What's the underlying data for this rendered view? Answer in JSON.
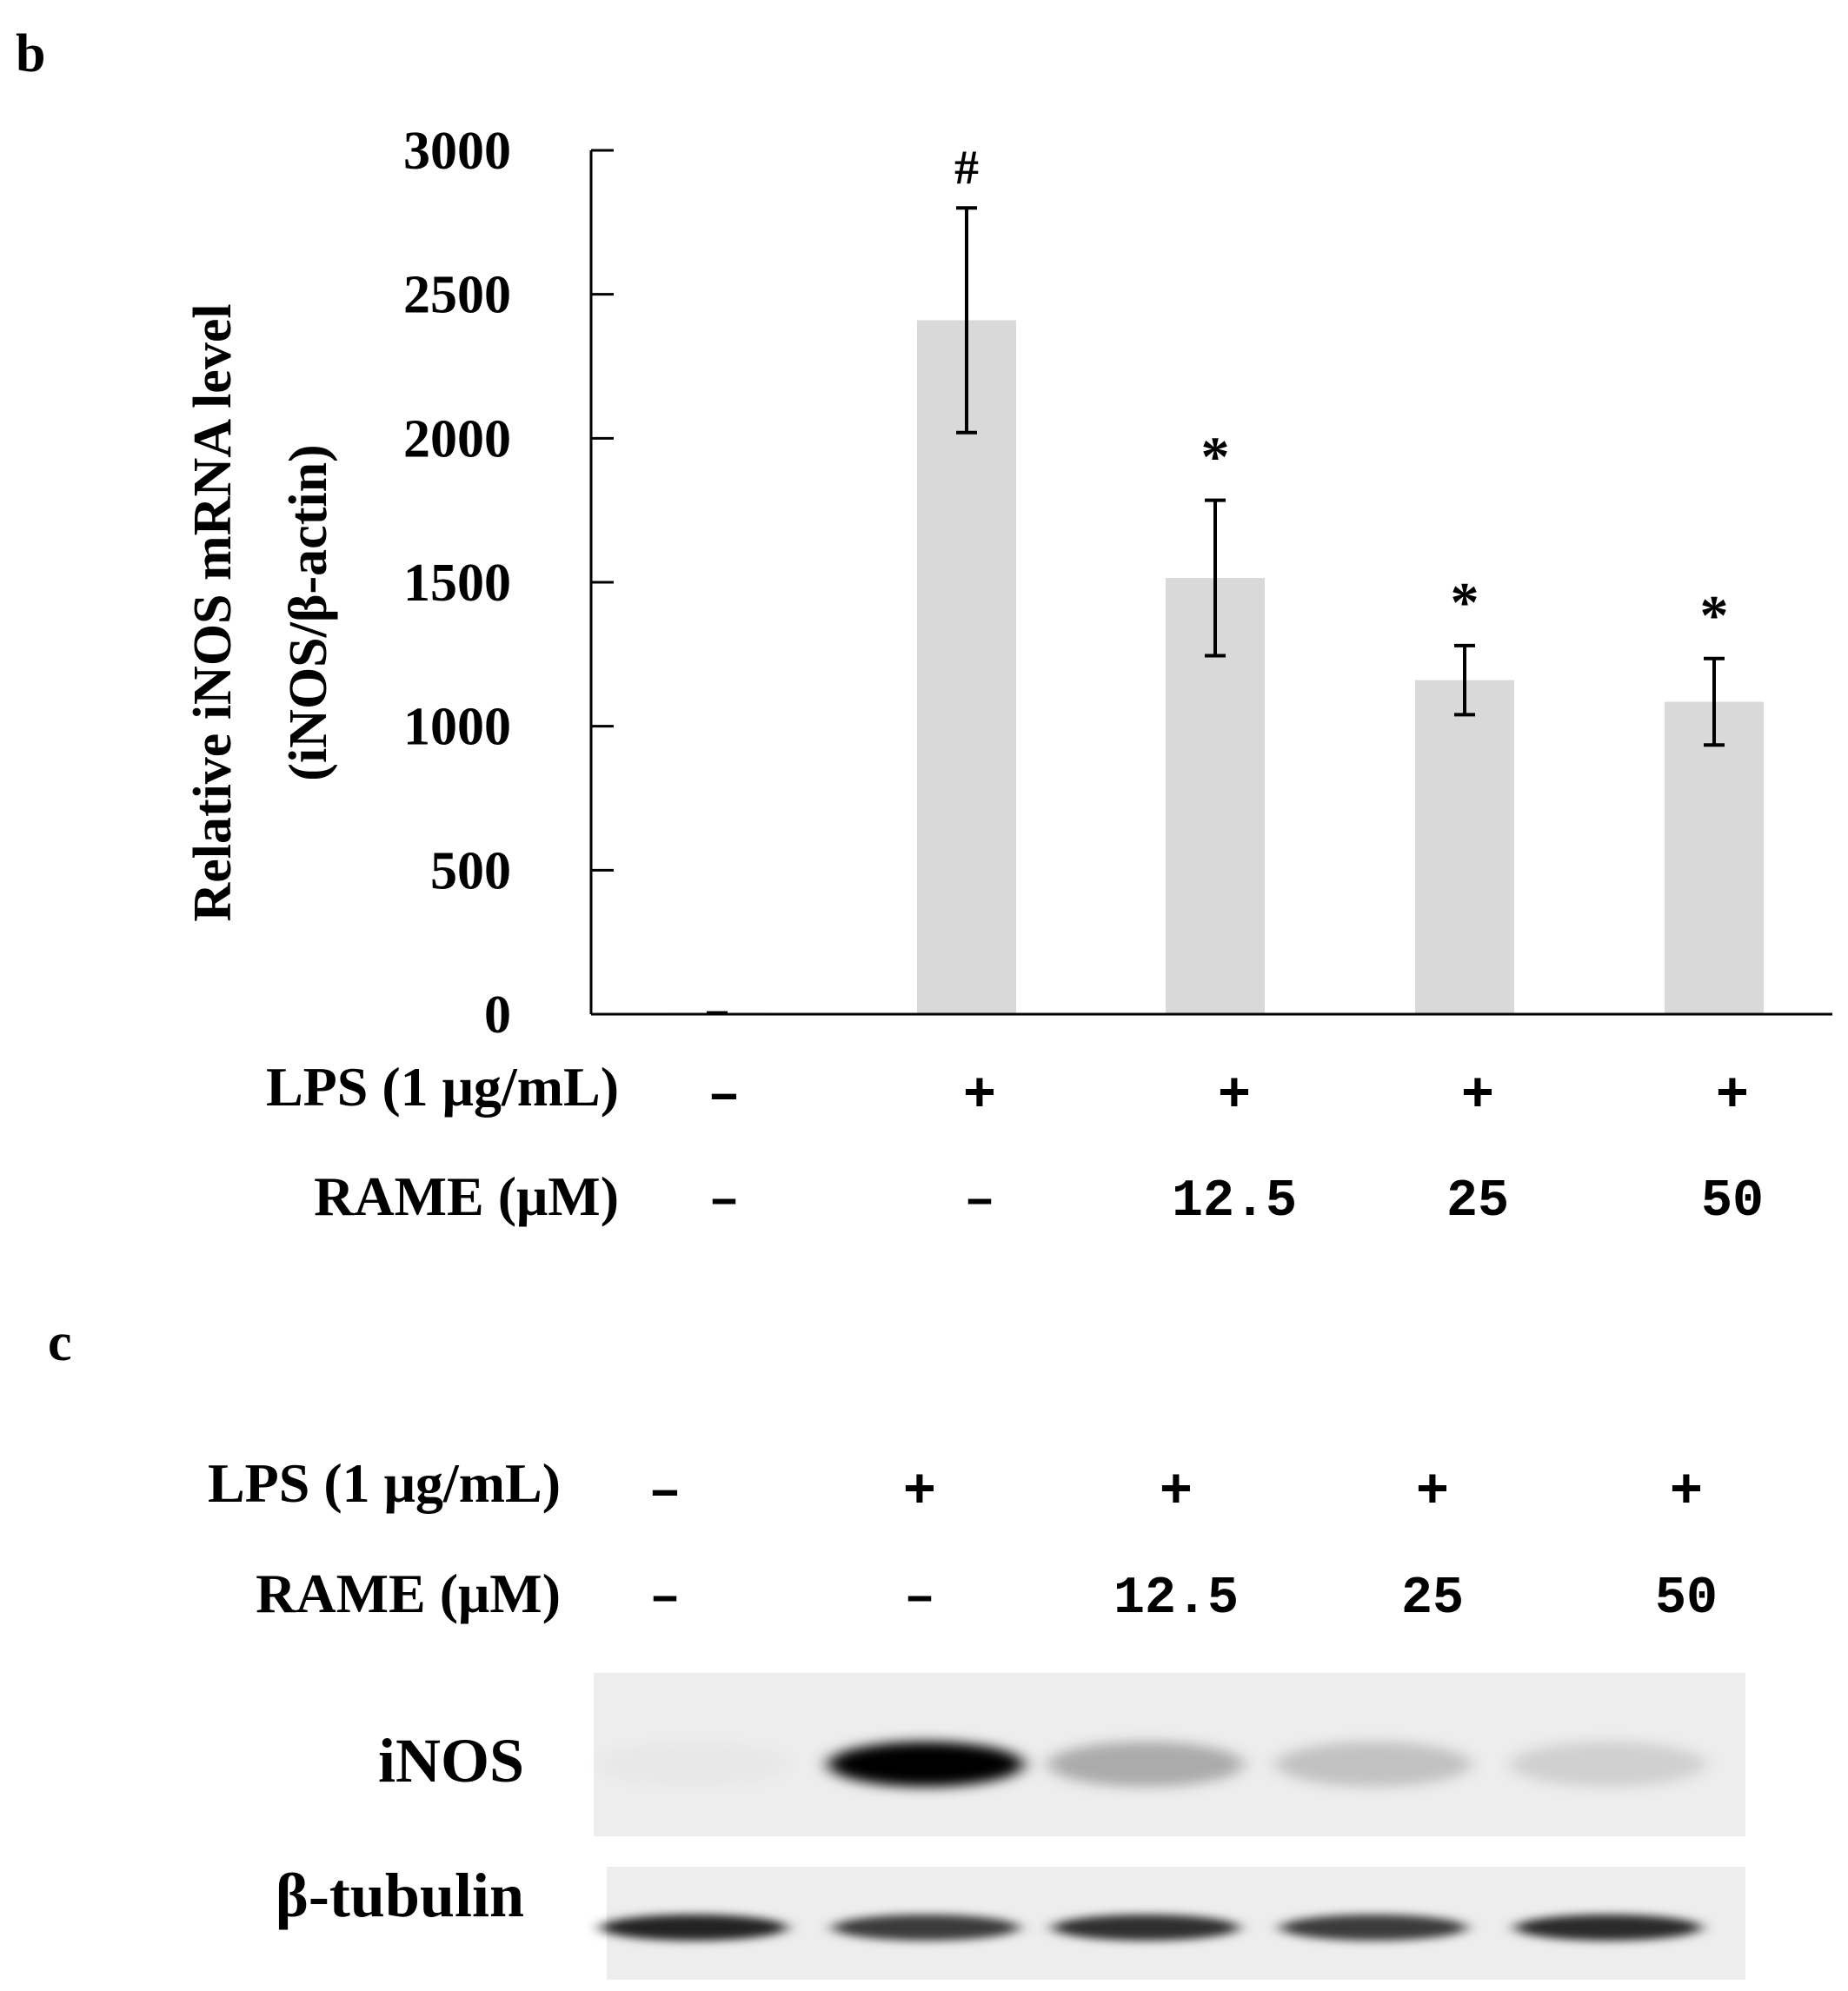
{
  "panel_b": {
    "label": "b",
    "chart_data": {
      "type": "bar",
      "ylabel_line1": "Relative iNOS mRNA level",
      "ylabel_line2": "(iNOS/β-actin)",
      "ylim": [
        0,
        3000
      ],
      "yticks": [
        "0",
        "500",
        "1000",
        "1500",
        "2000",
        "2500",
        "3000"
      ],
      "ytick_values": [
        0,
        500,
        1000,
        1500,
        2000,
        2500,
        3000
      ],
      "values": [
        5,
        2410,
        1515,
        1160,
        1085
      ],
      "errors": [
        0,
        390,
        270,
        120,
        150
      ],
      "significance": [
        "",
        "#",
        "*",
        "*",
        "*"
      ],
      "bar_color": "#d9d9d9",
      "grid": false,
      "row_labels": [
        "LPS (1 μg/mL)",
        "RAME (μM)"
      ],
      "lps": [
        "–",
        "+",
        "+",
        "+",
        "+"
      ],
      "rame": [
        "–",
        "–",
        "12.5",
        "25",
        "50"
      ]
    }
  },
  "panel_c": {
    "label": "c",
    "row_labels": [
      "LPS (1 μg/mL)",
      "RAME (μM)"
    ],
    "lps": [
      "–",
      "+",
      "+",
      "+",
      "+"
    ],
    "rame": [
      "–",
      "–",
      "12.5",
      "25",
      "50"
    ],
    "bands": [
      {
        "name": "iNOS",
        "intensity": [
          0.02,
          1.0,
          0.28,
          0.18,
          0.12
        ]
      },
      {
        "name": "β-tubulin",
        "intensity": [
          0.85,
          0.75,
          0.8,
          0.75,
          0.82
        ]
      }
    ]
  }
}
